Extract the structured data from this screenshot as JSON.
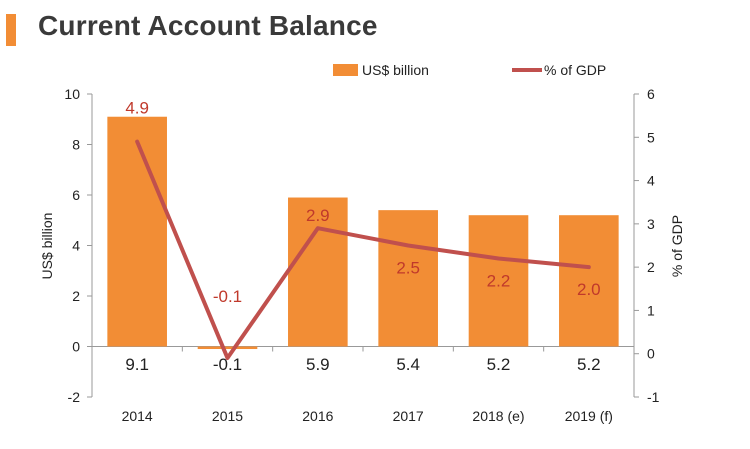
{
  "title": "Current Account Balance",
  "colors": {
    "bar": "#f28d35",
    "line": "#c0504d",
    "axis": "#999999",
    "text": "#222222",
    "label_red": "#c0392b",
    "accent": "#f28d35"
  },
  "chart_data": {
    "type": "bar",
    "categories": [
      "2014",
      "2015",
      "2016",
      "2017",
      "2018 (e)",
      "2019 (f)"
    ],
    "series": [
      {
        "name": "US$ billion",
        "type": "bar",
        "axis": "left",
        "values": [
          9.1,
          -0.1,
          5.9,
          5.4,
          5.2,
          5.2
        ],
        "labels": [
          "9.1",
          "-0.1",
          "5.9",
          "5.4",
          "5.2",
          "5.2"
        ]
      },
      {
        "name": "% of GDP",
        "type": "line",
        "axis": "right",
        "values": [
          4.9,
          -0.1,
          2.9,
          2.5,
          2.2,
          2.0
        ],
        "labels": [
          "4.9",
          "-0.1",
          "2.9",
          "2.5",
          "2.2",
          "2.0"
        ]
      }
    ],
    "ylabel": "US$ billion",
    "y2label": "% of GDP",
    "ylim": [
      -2,
      10
    ],
    "y2lim": [
      -1,
      6
    ],
    "yticks": [
      "-2",
      "0",
      "2",
      "4",
      "6",
      "8",
      "10"
    ],
    "y2ticks": [
      "-1",
      "0",
      "1",
      "2",
      "3",
      "4",
      "5",
      "6"
    ],
    "legend_position": "top-right",
    "grid": false
  }
}
